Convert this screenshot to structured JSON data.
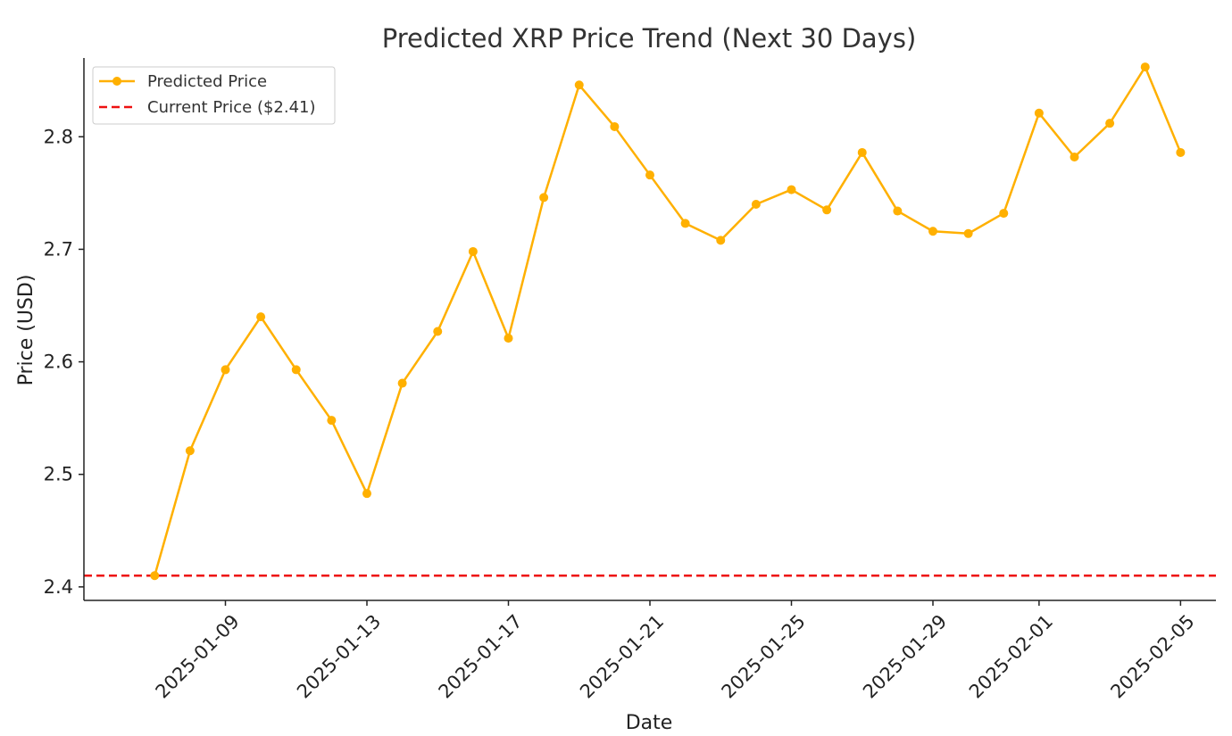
{
  "chart_data": {
    "type": "line",
    "title": "Predicted XRP Price Trend (Next 30 Days)",
    "xlabel": "Date",
    "ylabel": "Price (USD)",
    "ylim": [
      2.388,
      2.87
    ],
    "xlim": [
      "2025-01-05",
      "2025-02-06"
    ],
    "grid": false,
    "legend_position": "top-left",
    "y_ticks": [
      "2.4",
      "2.5",
      "2.6",
      "2.7",
      "2.8"
    ],
    "x_ticks": [
      "2025-01-09",
      "2025-01-13",
      "2025-01-17",
      "2025-01-21",
      "2025-01-25",
      "2025-01-29",
      "2025-02-01",
      "2025-02-05"
    ],
    "series": [
      {
        "name": "Predicted Price",
        "color": "#FFB000",
        "marker": "circle",
        "x": [
          "2025-01-07",
          "2025-01-08",
          "2025-01-09",
          "2025-01-10",
          "2025-01-11",
          "2025-01-12",
          "2025-01-13",
          "2025-01-14",
          "2025-01-15",
          "2025-01-16",
          "2025-01-17",
          "2025-01-18",
          "2025-01-19",
          "2025-01-20",
          "2025-01-21",
          "2025-01-22",
          "2025-01-23",
          "2025-01-24",
          "2025-01-25",
          "2025-01-26",
          "2025-01-27",
          "2025-01-28",
          "2025-01-29",
          "2025-01-30",
          "2025-01-31",
          "2025-02-01",
          "2025-02-02",
          "2025-02-03",
          "2025-02-04",
          "2025-02-05"
        ],
        "values": [
          2.41,
          2.521,
          2.593,
          2.64,
          2.593,
          2.548,
          2.483,
          2.581,
          2.627,
          2.698,
          2.621,
          2.746,
          2.846,
          2.809,
          2.766,
          2.723,
          2.708,
          2.74,
          2.753,
          2.735,
          2.786,
          2.734,
          2.716,
          2.714,
          2.732,
          2.821,
          2.782,
          2.812,
          2.862,
          2.786
        ]
      }
    ],
    "reference_lines": [
      {
        "name": "Current Price ($2.41)",
        "value": 2.41,
        "color": "#EE1111",
        "style": "dashed"
      }
    ]
  }
}
